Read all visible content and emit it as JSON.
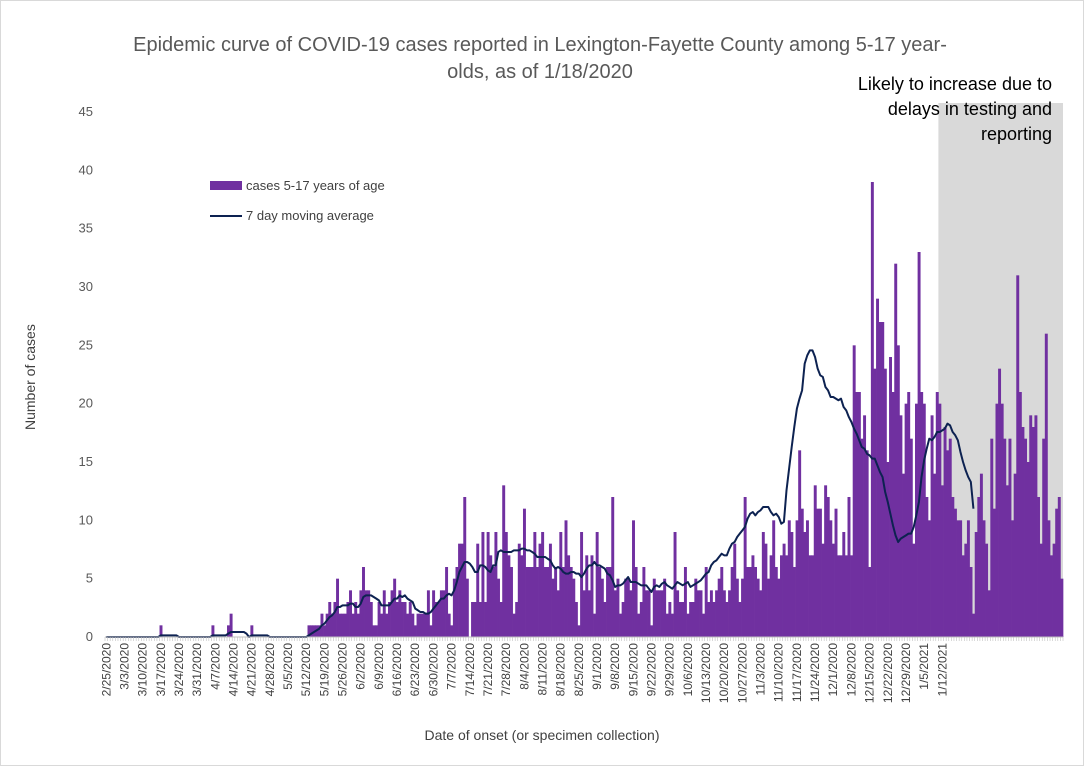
{
  "chart_data": {
    "type": "bar",
    "title_line1": "Epidemic curve of COVID-19 cases reported in Lexington-Fayette County among 5-17 year-",
    "title_line2": "olds, as of 1/18/2020",
    "annotation_lines": [
      "Likely to increase due to",
      "delays in testing and",
      "reporting"
    ],
    "xlabel": "Date of onset (or specimen collection)",
    "ylabel": "Number of cases",
    "ylim": [
      0,
      45
    ],
    "yticks": [
      0,
      5,
      10,
      15,
      20,
      25,
      30,
      35,
      40,
      45
    ],
    "legend_placement": "upper-left",
    "grid": false,
    "colors": {
      "bars": "#7030a0",
      "line": "#0d2251",
      "shade": "#d9d9d9"
    },
    "shaded_region_start": "1/11/2021",
    "x_start_date": "2/25/2020",
    "x_tick_labels": [
      "2/25/2020",
      "3/3/2020",
      "3/10/2020",
      "3/17/2020",
      "3/24/2020",
      "3/31/2020",
      "4/7/2020",
      "4/14/2020",
      "4/21/2020",
      "4/28/2020",
      "5/5/2020",
      "5/12/2020",
      "5/19/2020",
      "5/26/2020",
      "6/2/2020",
      "6/9/2020",
      "6/16/2020",
      "6/23/2020",
      "6/30/2020",
      "7/7/2020",
      "7/14/2020",
      "7/21/2020",
      "7/28/2020",
      "8/4/2020",
      "8/11/2020",
      "8/18/2020",
      "8/25/2020",
      "9/1/2020",
      "9/8/2020",
      "9/15/2020",
      "9/22/2020",
      "9/29/2020",
      "10/6/2020",
      "10/13/2020",
      "10/20/2020",
      "10/27/2020",
      "11/3/2020",
      "11/10/2020",
      "11/17/2020",
      "11/24/2020",
      "12/1/2020",
      "12/8/2020",
      "12/15/2020",
      "12/22/2020",
      "12/29/2020",
      "1/5/2021",
      "1/12/2021"
    ],
    "series": [
      {
        "name": "cases 5-17 years of age",
        "type": "bar",
        "values": [
          0,
          0,
          0,
          0,
          0,
          0,
          0,
          0,
          0,
          0,
          0,
          0,
          0,
          0,
          0,
          0,
          0,
          0,
          0,
          0,
          0,
          1,
          0,
          0,
          0,
          0,
          0,
          0,
          0,
          0,
          0,
          0,
          0,
          0,
          0,
          0,
          0,
          0,
          0,
          0,
          0,
          1,
          0,
          0,
          0,
          0,
          0,
          1,
          2,
          0,
          0,
          0,
          0,
          0,
          0,
          0,
          1,
          0,
          0,
          0,
          0,
          0,
          0,
          0,
          0,
          0,
          0,
          0,
          0,
          0,
          0,
          0,
          0,
          0,
          0,
          0,
          0,
          0,
          1,
          1,
          1,
          1,
          1,
          2,
          1,
          2,
          3,
          2,
          3,
          5,
          2,
          2,
          2,
          3,
          4,
          2,
          3,
          2,
          4,
          6,
          4,
          4,
          3,
          1,
          1,
          3,
          2,
          4,
          2,
          3,
          4,
          5,
          3,
          4,
          3,
          3,
          2,
          3,
          2,
          1,
          2,
          2,
          2,
          2,
          4,
          1,
          4,
          3,
          3,
          4,
          4,
          6,
          2,
          1,
          5,
          6,
          8,
          8,
          12,
          5,
          0,
          3,
          3,
          8,
          3,
          9,
          3,
          9,
          7,
          6,
          9,
          5,
          3,
          13,
          9,
          7,
          6,
          2,
          3,
          8,
          7,
          11,
          6,
          6,
          6,
          9,
          6,
          8,
          9,
          6,
          6,
          8,
          5,
          6,
          4,
          9,
          6,
          10,
          7,
          6,
          5,
          3,
          1,
          9,
          4,
          7,
          4,
          7,
          2,
          9,
          6,
          5,
          3,
          6,
          6,
          12,
          4,
          5,
          2,
          3,
          5,
          5,
          4,
          10,
          6,
          2,
          3,
          6,
          4,
          4,
          1,
          5,
          4,
          4,
          4,
          5,
          2,
          3,
          2,
          9,
          4,
          3,
          3,
          6,
          2,
          3,
          3,
          5,
          4,
          4,
          2,
          6,
          3,
          4,
          3,
          4,
          5,
          6,
          4,
          3,
          4,
          6,
          8,
          5,
          3,
          5,
          12,
          6,
          6,
          7,
          6,
          5,
          4,
          9,
          8,
          5,
          7,
          10,
          6,
          5,
          7,
          8,
          7,
          10,
          9,
          6,
          10,
          16,
          11,
          9,
          10,
          7,
          7,
          13,
          11,
          11,
          8,
          13,
          12,
          10,
          8,
          11,
          7,
          7,
          9,
          7,
          12,
          7,
          25,
          21,
          21,
          17,
          19,
          16,
          6,
          39,
          23,
          29,
          27,
          27,
          23,
          15,
          24,
          21,
          32,
          25,
          19,
          14,
          20,
          21,
          17,
          8,
          20,
          33,
          21,
          20,
          12,
          10,
          19,
          14,
          21,
          20,
          13,
          18,
          16,
          17,
          12,
          11,
          10,
          10,
          7,
          8,
          10,
          6,
          2,
          9,
          12,
          14,
          10,
          8,
          4,
          17,
          11,
          20,
          23,
          20,
          17,
          13,
          17,
          10,
          14,
          31,
          21,
          18,
          17,
          15,
          19,
          18,
          19,
          12,
          8,
          17,
          26,
          10,
          7,
          8,
          11,
          12,
          5
        ]
      },
      {
        "name": "7 day moving average",
        "type": "line",
        "values": [
          0,
          0,
          0,
          0,
          0,
          0,
          0,
          0,
          0,
          0,
          0,
          0,
          0,
          0,
          0,
          0,
          0,
          0,
          0,
          0,
          0,
          0.14,
          0.14,
          0.14,
          0.14,
          0.14,
          0.14,
          0.14,
          0,
          0,
          0,
          0,
          0,
          0,
          0,
          0,
          0,
          0,
          0,
          0,
          0,
          0.14,
          0.14,
          0.14,
          0.14,
          0.14,
          0.14,
          0.29,
          0.43,
          0.43,
          0.43,
          0.43,
          0.43,
          0.43,
          0.29,
          0,
          0.14,
          0.14,
          0.14,
          0.14,
          0.14,
          0.14,
          0.14,
          0,
          0,
          0,
          0,
          0,
          0,
          0,
          0,
          0,
          0,
          0,
          0,
          0,
          0,
          0,
          0.14,
          0.29,
          0.43,
          0.57,
          0.71,
          1,
          1.14,
          1.43,
          1.71,
          1.86,
          2.14,
          2.57,
          2.57,
          2.71,
          2.71,
          2.71,
          2.86,
          2.86,
          2.57,
          2.57,
          2.86,
          3.43,
          3.57,
          3.57,
          3.57,
          3.43,
          3.29,
          3.14,
          2.71,
          2.71,
          2.71,
          2.71,
          3,
          3.29,
          3.29,
          3.57,
          3.43,
          3.57,
          3.29,
          3.14,
          3,
          2.43,
          2.29,
          2.14,
          2.14,
          2,
          2,
          2.14,
          2.43,
          2.71,
          3,
          3.29,
          3.29,
          3.57,
          3.71,
          3.57,
          4,
          4.71,
          5.57,
          6,
          6.43,
          6.43,
          6.29,
          6,
          5.57,
          5.57,
          6.14,
          6.14,
          6,
          5.71,
          5.57,
          6.14,
          6.14,
          7.29,
          7.43,
          7.29,
          7.29,
          7.29,
          7.29,
          7.43,
          7.43,
          7.43,
          7.57,
          7.57,
          7.43,
          7.43,
          7.29,
          7.14,
          6.86,
          6.86,
          6.86,
          6.86,
          6.71,
          6.57,
          6.14,
          5.86,
          6,
          5.86,
          5.57,
          5.43,
          5.43,
          5.57,
          5.57,
          5.43,
          5.43,
          5.14,
          5.43,
          5.86,
          6.14,
          6.14,
          6.43,
          6.14,
          6.14,
          6,
          5.86,
          5.43,
          5.29,
          4.86,
          4.29,
          4.43,
          4.43,
          4.57,
          4.86,
          5.14,
          4.71,
          4.71,
          4.71,
          4.57,
          4.43,
          4.43,
          4.43,
          4.14,
          3.86,
          4.29,
          4.43,
          4.29,
          4.57,
          4.71,
          4.43,
          4.29,
          4.14,
          4.43,
          4.71,
          4.57,
          4.43,
          4.57,
          4.71,
          4.29,
          4.43,
          4.57,
          4.71,
          4.86,
          5.14,
          5.43,
          5.57,
          6.14,
          6.43,
          6.57,
          6.86,
          7.14,
          7,
          7,
          7.57,
          8,
          8.14,
          8.57,
          8.86,
          9.14,
          9.43,
          10.14,
          10.57,
          10.71,
          10.43,
          10.71,
          10.86,
          11.14,
          11.14,
          11.14,
          10.71,
          10.43,
          10.57,
          10.29,
          9.71,
          9.86,
          12.57,
          14.43,
          16.29,
          18,
          19.57,
          20.43,
          21.14,
          23.43,
          24.14,
          24.57,
          24.57,
          24,
          23,
          22.43,
          22.29,
          21.43,
          21.14,
          20.57,
          20.57,
          20.43,
          20.29,
          20.43,
          19.71,
          19.43,
          18.86,
          18.43,
          17.86,
          17.43,
          16.86,
          16.29,
          16.14,
          15.71,
          15.57,
          15.29,
          15.29,
          14.71,
          14.14,
          13.71,
          12.43,
          11.57,
          10.57,
          9.57,
          8.71,
          8.14,
          8.43,
          8.57,
          8.71,
          8.86,
          8.86,
          9.43,
          10.43,
          11.57,
          13.71,
          15.14,
          16.14,
          17,
          16.86,
          17.14,
          17.57,
          17.57,
          17.71,
          17.86,
          18.29,
          18.14,
          17.57,
          17.29,
          16.86,
          15.86,
          15,
          14.29,
          13.71,
          13.29,
          11
        ]
      }
    ]
  },
  "legend": {
    "bars_label": "cases 5-17 years of age",
    "line_label": "7 day moving average"
  }
}
